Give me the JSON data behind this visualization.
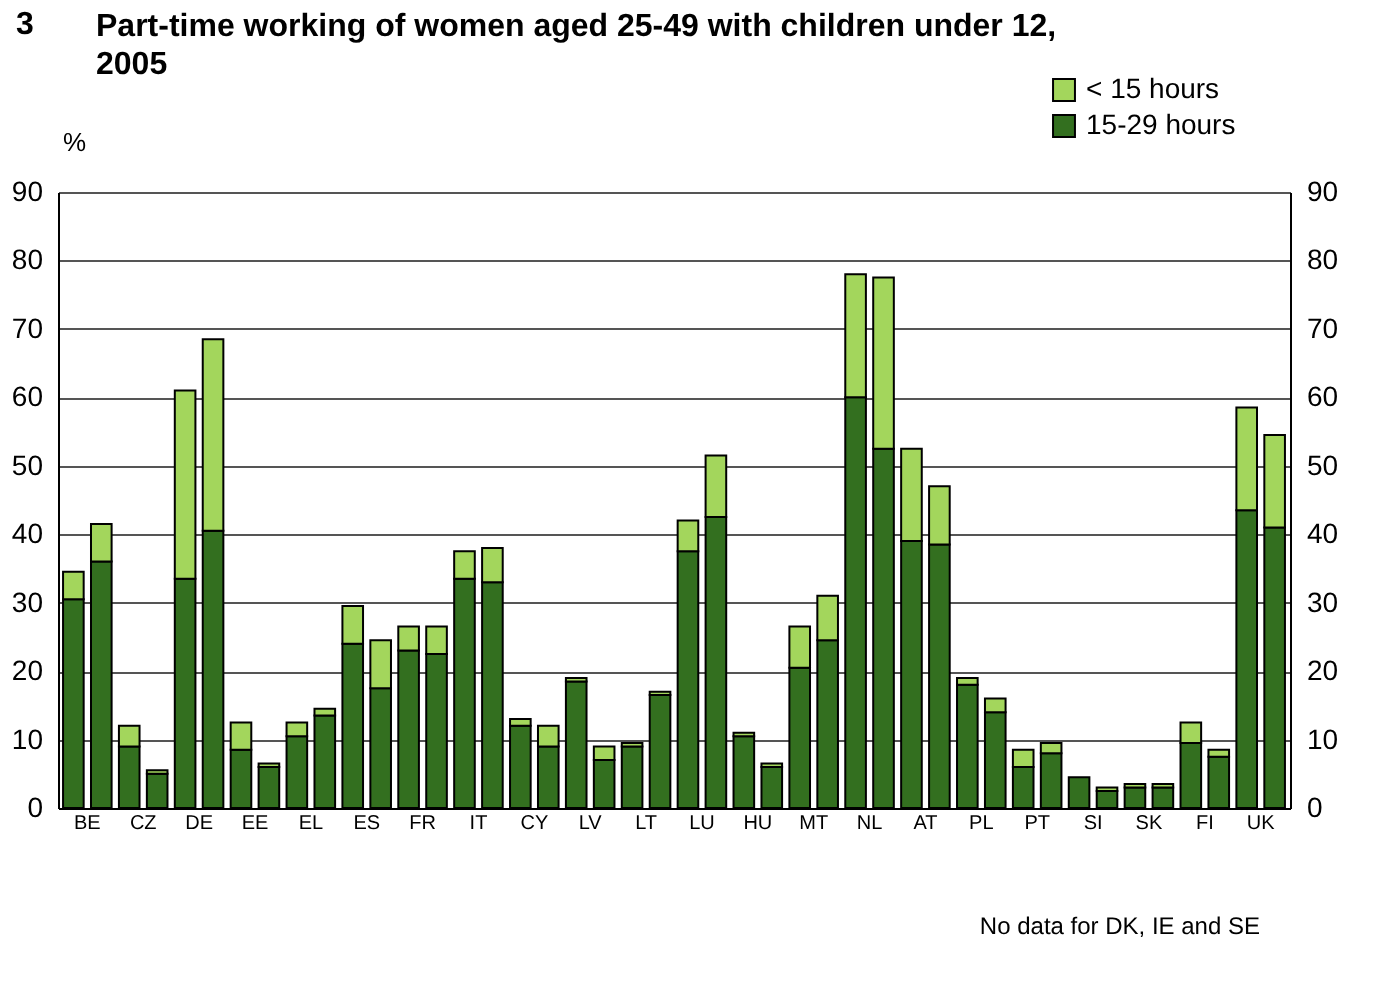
{
  "chart_data": {
    "type": "bar",
    "title": "Part-time working of women aged 25-49 with children under 12, 2005",
    "ylabel": "%",
    "annotations": [
      "3",
      "No data for DK, IE and SE"
    ],
    "categories": [
      "BE",
      null,
      "CZ",
      null,
      "DE",
      null,
      "EE",
      null,
      "EL",
      null,
      "ES",
      null,
      "FR",
      null,
      "IT",
      null,
      "CY",
      null,
      "LV",
      null,
      "LT",
      null,
      "LU",
      null,
      "HU",
      null,
      "MT",
      null,
      "NL",
      null,
      "AT",
      null,
      "PL",
      null,
      "PT",
      null,
      "SI",
      null,
      "SK",
      null,
      "FI",
      null,
      "UK",
      null
    ],
    "stacked": true,
    "series": [
      {
        "name": "15-29 hours",
        "color": "#336f1f",
        "values": [
          30.5,
          36,
          9,
          5,
          33.5,
          40.5,
          8.5,
          6,
          10.5,
          13.5,
          24,
          17.5,
          23,
          22.5,
          33.5,
          33,
          12,
          9,
          18.5,
          7,
          9,
          16.5,
          37.5,
          42.5,
          10.5,
          6,
          20.5,
          24.5,
          60,
          52.5,
          39,
          38.5,
          18,
          14,
          6,
          8,
          4.5,
          2.5,
          3,
          3,
          9.5,
          7.5,
          43.5,
          41
        ]
      },
      {
        "name": "< 15 hours",
        "color": "#a3d65c",
        "values": [
          4,
          5.5,
          3,
          0.5,
          27.5,
          28,
          4,
          0.5,
          2,
          1,
          5.5,
          7,
          3.5,
          4,
          4,
          5,
          1,
          3,
          0.5,
          2,
          0.5,
          0.5,
          4.5,
          9,
          0.5,
          0.5,
          6,
          6.5,
          18,
          25,
          13.5,
          8.5,
          1,
          2,
          2.5,
          1.5,
          null,
          0.5,
          0.5,
          0.5,
          3,
          1,
          15,
          13.5
        ]
      }
    ],
    "ylim": [
      0,
      90
    ],
    "yticks": [
      0,
      10,
      20,
      30,
      40,
      50,
      60,
      70,
      80,
      90
    ],
    "y2lim": [
      0,
      90
    ],
    "y2ticks": [
      0,
      10,
      20,
      30,
      40,
      50,
      60,
      70,
      80,
      90
    ],
    "grid": "y",
    "legend": "top right"
  }
}
